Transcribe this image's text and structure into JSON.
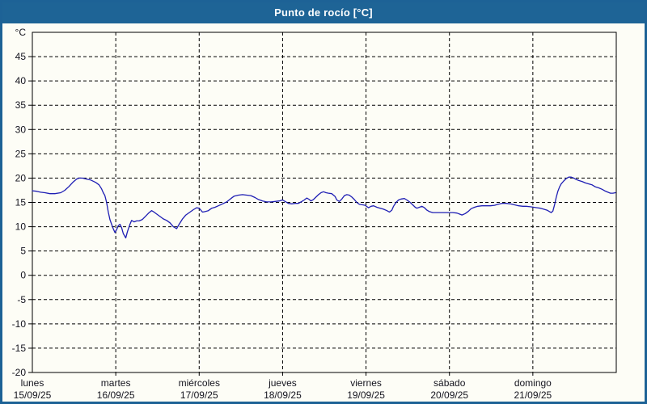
{
  "window": {
    "title": "Punto de rocío [°C]"
  },
  "colors": {
    "frame_border": "#1d6296",
    "titlebar_bg": "#1e6496",
    "titlebar_text": "#ffffff",
    "content_bg": "#fdfdf6",
    "grid": "#000000",
    "axis": "#000000",
    "tick_label": "#14141e",
    "series_line": "#1e1eb4"
  },
  "chart_data": {
    "type": "line",
    "title": "Punto de rocío [°C]",
    "unit_label": "°C",
    "ylabel": "°C",
    "xlabel": "",
    "ylim": [
      -20,
      50
    ],
    "yticks": [
      45,
      40,
      35,
      30,
      25,
      20,
      15,
      10,
      5,
      0,
      -5,
      -10,
      -15
    ],
    "y_bottom_label": "-20",
    "grid": true,
    "legend": "none",
    "x_range_days": [
      0,
      7
    ],
    "days": [
      {
        "name": "lunes",
        "date": "15/09/25"
      },
      {
        "name": "martes",
        "date": "16/09/25"
      },
      {
        "name": "miércoles",
        "date": "17/09/25"
      },
      {
        "name": "jueves",
        "date": "18/09/25"
      },
      {
        "name": "viernes",
        "date": "19/09/25"
      },
      {
        "name": "sábado",
        "date": "20/09/25"
      },
      {
        "name": "domingo",
        "date": "21/09/25"
      }
    ],
    "series": [
      {
        "name": "Punto de rocío",
        "unit": "°C",
        "points": [
          [
            0.0,
            17.4
          ],
          [
            0.05,
            17.3
          ],
          [
            0.1,
            17.1
          ],
          [
            0.15,
            17.0
          ],
          [
            0.21,
            16.8
          ],
          [
            0.27,
            16.8
          ],
          [
            0.34,
            17.0
          ],
          [
            0.39,
            17.5
          ],
          [
            0.44,
            18.3
          ],
          [
            0.49,
            19.2
          ],
          [
            0.53,
            19.8
          ],
          [
            0.56,
            20.0
          ],
          [
            0.6,
            20.0
          ],
          [
            0.65,
            19.8
          ],
          [
            0.7,
            19.6
          ],
          [
            0.76,
            19.1
          ],
          [
            0.8,
            18.6
          ],
          [
            0.83,
            17.8
          ],
          [
            0.85,
            17.0
          ],
          [
            0.87,
            16.4
          ],
          [
            0.89,
            15.0
          ],
          [
            0.91,
            13.0
          ],
          [
            0.93,
            11.5
          ],
          [
            0.95,
            10.5
          ],
          [
            0.97,
            9.6
          ],
          [
            0.99,
            8.8
          ],
          [
            1.01,
            9.4
          ],
          [
            1.03,
            10.2
          ],
          [
            1.05,
            10.5
          ],
          [
            1.07,
            9.8
          ],
          [
            1.09,
            8.6
          ],
          [
            1.12,
            7.7
          ],
          [
            1.14,
            9.0
          ],
          [
            1.17,
            10.5
          ],
          [
            1.19,
            11.3
          ],
          [
            1.22,
            11.0
          ],
          [
            1.25,
            11.2
          ],
          [
            1.28,
            11.2
          ],
          [
            1.32,
            11.5
          ],
          [
            1.36,
            12.2
          ],
          [
            1.4,
            12.9
          ],
          [
            1.43,
            13.3
          ],
          [
            1.45,
            13.1
          ],
          [
            1.49,
            12.6
          ],
          [
            1.53,
            12.1
          ],
          [
            1.57,
            11.6
          ],
          [
            1.61,
            11.3
          ],
          [
            1.65,
            10.8
          ],
          [
            1.69,
            10.0
          ],
          [
            1.73,
            9.6
          ],
          [
            1.76,
            10.5
          ],
          [
            1.8,
            11.6
          ],
          [
            1.84,
            12.4
          ],
          [
            1.89,
            13.0
          ],
          [
            1.93,
            13.5
          ],
          [
            1.97,
            13.9
          ],
          [
            2.0,
            13.8
          ],
          [
            2.04,
            13.0
          ],
          [
            2.07,
            13.1
          ],
          [
            2.11,
            13.3
          ],
          [
            2.15,
            13.8
          ],
          [
            2.19,
            14.0
          ],
          [
            2.23,
            14.3
          ],
          [
            2.28,
            14.7
          ],
          [
            2.33,
            15.1
          ],
          [
            2.38,
            15.8
          ],
          [
            2.42,
            16.3
          ],
          [
            2.47,
            16.5
          ],
          [
            2.52,
            16.6
          ],
          [
            2.57,
            16.5
          ],
          [
            2.62,
            16.4
          ],
          [
            2.67,
            16.0
          ],
          [
            2.71,
            15.6
          ],
          [
            2.76,
            15.3
          ],
          [
            2.81,
            15.1
          ],
          [
            2.86,
            15.1
          ],
          [
            2.91,
            15.2
          ],
          [
            2.96,
            15.3
          ],
          [
            3.0,
            15.5
          ],
          [
            3.03,
            15.2
          ],
          [
            3.07,
            14.8
          ],
          [
            3.11,
            14.7
          ],
          [
            3.15,
            14.8
          ],
          [
            3.19,
            14.8
          ],
          [
            3.23,
            15.2
          ],
          [
            3.26,
            15.5
          ],
          [
            3.29,
            15.9
          ],
          [
            3.32,
            15.6
          ],
          [
            3.34,
            15.3
          ],
          [
            3.37,
            15.6
          ],
          [
            3.4,
            16.1
          ],
          [
            3.43,
            16.6
          ],
          [
            3.46,
            17.0
          ],
          [
            3.49,
            17.2
          ],
          [
            3.52,
            17.0
          ],
          [
            3.55,
            16.9
          ],
          [
            3.59,
            16.8
          ],
          [
            3.63,
            16.2
          ],
          [
            3.65,
            15.5
          ],
          [
            3.68,
            15.2
          ],
          [
            3.71,
            15.7
          ],
          [
            3.74,
            16.4
          ],
          [
            3.77,
            16.6
          ],
          [
            3.8,
            16.5
          ],
          [
            3.83,
            16.1
          ],
          [
            3.86,
            15.6
          ],
          [
            3.89,
            15.0
          ],
          [
            3.92,
            14.6
          ],
          [
            3.96,
            14.5
          ],
          [
            3.99,
            14.4
          ],
          [
            4.03,
            13.9
          ],
          [
            4.06,
            14.2
          ],
          [
            4.09,
            14.3
          ],
          [
            4.13,
            14.0
          ],
          [
            4.17,
            13.8
          ],
          [
            4.21,
            13.6
          ],
          [
            4.25,
            13.3
          ],
          [
            4.28,
            13.0
          ],
          [
            4.31,
            13.4
          ],
          [
            4.33,
            14.2
          ],
          [
            4.36,
            15.0
          ],
          [
            4.39,
            15.5
          ],
          [
            4.42,
            15.7
          ],
          [
            4.46,
            15.8
          ],
          [
            4.49,
            15.5
          ],
          [
            4.53,
            15.0
          ],
          [
            4.56,
            14.5
          ],
          [
            4.59,
            14.0
          ],
          [
            4.61,
            13.8
          ],
          [
            4.64,
            14.0
          ],
          [
            4.67,
            14.2
          ],
          [
            4.7,
            13.9
          ],
          [
            4.73,
            13.4
          ],
          [
            4.76,
            13.1
          ],
          [
            4.8,
            12.9
          ],
          [
            4.85,
            12.9
          ],
          [
            4.9,
            12.9
          ],
          [
            4.94,
            12.9
          ],
          [
            4.99,
            12.9
          ],
          [
            5.04,
            12.9
          ],
          [
            5.09,
            12.8
          ],
          [
            5.12,
            12.6
          ],
          [
            5.15,
            12.4
          ],
          [
            5.19,
            12.7
          ],
          [
            5.23,
            13.2
          ],
          [
            5.26,
            13.7
          ],
          [
            5.3,
            14.0
          ],
          [
            5.34,
            14.2
          ],
          [
            5.39,
            14.3
          ],
          [
            5.44,
            14.3
          ],
          [
            5.49,
            14.3
          ],
          [
            5.54,
            14.4
          ],
          [
            5.58,
            14.6
          ],
          [
            5.63,
            14.8
          ],
          [
            5.68,
            14.8
          ],
          [
            5.73,
            14.7
          ],
          [
            5.78,
            14.5
          ],
          [
            5.83,
            14.3
          ],
          [
            5.88,
            14.2
          ],
          [
            5.92,
            14.2
          ],
          [
            5.97,
            14.1
          ],
          [
            6.01,
            14.0
          ],
          [
            6.05,
            13.9
          ],
          [
            6.09,
            13.8
          ],
          [
            6.13,
            13.6
          ],
          [
            6.17,
            13.4
          ],
          [
            6.2,
            13.1
          ],
          [
            6.22,
            12.9
          ],
          [
            6.24,
            13.2
          ],
          [
            6.26,
            14.5
          ],
          [
            6.28,
            16.0
          ],
          [
            6.3,
            17.3
          ],
          [
            6.32,
            18.2
          ],
          [
            6.34,
            18.8
          ],
          [
            6.37,
            19.4
          ],
          [
            6.4,
            19.9
          ],
          [
            6.43,
            20.2
          ],
          [
            6.46,
            20.2
          ],
          [
            6.49,
            20.0
          ],
          [
            6.51,
            19.8
          ],
          [
            6.55,
            19.5
          ],
          [
            6.59,
            19.3
          ],
          [
            6.63,
            19.0
          ],
          [
            6.67,
            18.8
          ],
          [
            6.71,
            18.6
          ],
          [
            6.75,
            18.2
          ],
          [
            6.79,
            18.0
          ],
          [
            6.83,
            17.7
          ],
          [
            6.86,
            17.4
          ],
          [
            6.9,
            17.1
          ],
          [
            6.93,
            16.9
          ],
          [
            6.96,
            16.9
          ],
          [
            6.99,
            17.0
          ]
        ]
      }
    ]
  }
}
